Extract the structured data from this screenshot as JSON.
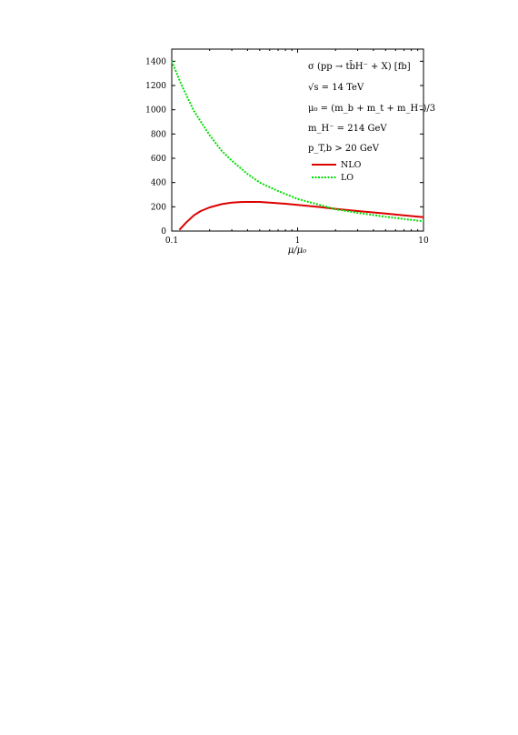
{
  "chart_data": {
    "type": "line",
    "xlabel": "μ/μ₀",
    "ylabel": "",
    "xscale": "log",
    "xlim": [
      0.1,
      10
    ],
    "ylim": [
      0,
      1500
    ],
    "xticks": [
      {
        "v": 0.1,
        "label": "0.1"
      },
      {
        "v": 1,
        "label": "1"
      },
      {
        "v": 10,
        "label": "10"
      }
    ],
    "yticks": [
      0,
      200,
      400,
      600,
      800,
      1000,
      1200,
      1400
    ],
    "annotations": [
      "σ (pp → tb̄H⁻ + X) [fb]",
      "√s = 14 TeV",
      "μ₀ = (m_b + m_t + m_H⁻)/3",
      "m_H⁻ = 214 GeV",
      "p_T,b > 20 GeV"
    ],
    "legend_position": "right",
    "series": [
      {
        "name": "NLO",
        "color": "#dd0000",
        "style": "solid",
        "x": [
          0.115,
          0.13,
          0.15,
          0.17,
          0.2,
          0.25,
          0.3,
          0.35,
          0.4,
          0.5,
          0.6,
          0.8,
          1.0,
          1.5,
          2.0,
          3.0,
          5.0,
          7.0,
          10.0
        ],
        "values": [
          10,
          70,
          130,
          165,
          195,
          222,
          235,
          239,
          240,
          240,
          235,
          225,
          215,
          198,
          183,
          165,
          145,
          130,
          115
        ]
      },
      {
        "name": "LO",
        "color": "#00dd00",
        "style": "dotted",
        "x": [
          0.1,
          0.12,
          0.15,
          0.2,
          0.25,
          0.3,
          0.4,
          0.5,
          0.7,
          1.0,
          1.5,
          2.0,
          3.0,
          5.0,
          7.0,
          10.0
        ],
        "values": [
          1400,
          1200,
          990,
          790,
          660,
          580,
          470,
          400,
          330,
          265,
          215,
          180,
          150,
          118,
          100,
          80
        ]
      }
    ]
  }
}
